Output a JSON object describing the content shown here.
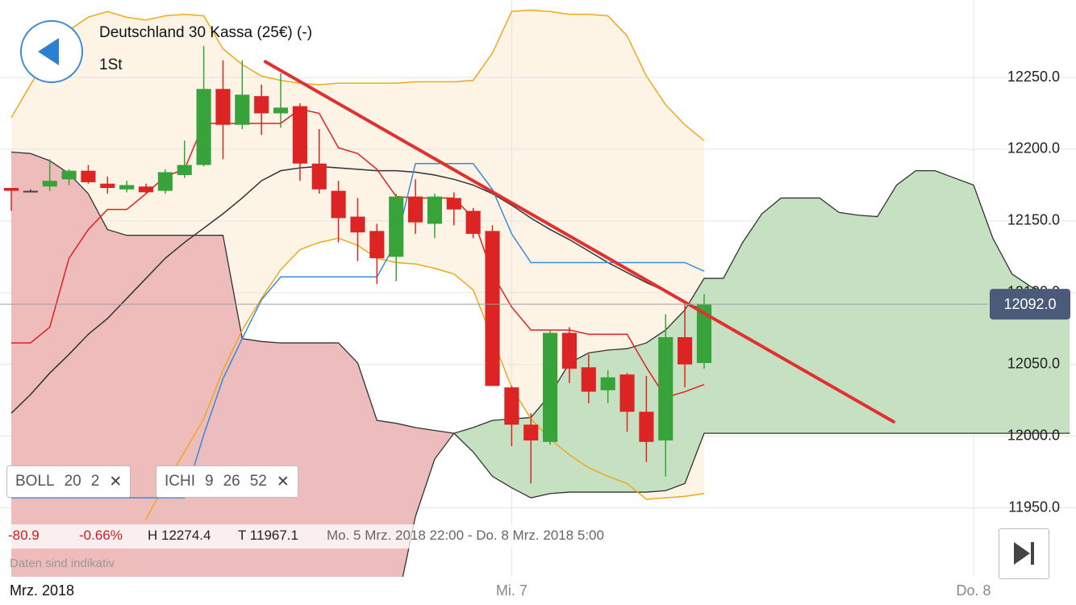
{
  "header": {
    "title": "Deutschland 30 Kassa (25€) (-)",
    "interval": "1St"
  },
  "chart_data": {
    "type": "candlestick",
    "period_label": "Mrz. 2018",
    "categories": [
      null,
      null,
      null,
      null,
      null,
      null,
      null,
      null,
      null,
      null,
      null,
      null,
      null,
      null,
      null,
      null,
      null,
      null,
      null,
      null,
      null,
      null,
      null,
      null,
      null,
      null,
      "Mi. 7",
      null,
      null,
      null,
      null,
      null,
      null,
      null,
      null,
      null,
      null,
      null,
      null,
      null,
      null,
      null,
      null,
      null,
      null,
      null,
      null,
      null,
      null,
      null,
      "Do. 8",
      null,
      null,
      null,
      null,
      null
    ],
    "open": [
      12173,
      12171,
      12174,
      12179,
      12185,
      12176,
      12172,
      12174,
      12171,
      12182,
      12189,
      12242,
      12217,
      12237,
      12225,
      12230,
      12190,
      12171,
      12153,
      12143,
      12125,
      12167,
      12148,
      12166,
      12157,
      12143,
      12034,
      12008,
      11996,
      12072,
      12048,
      12032,
      12043,
      12017,
      11997,
      12069,
      12051,
      null,
      null,
      null,
      null,
      null,
      null,
      null,
      null,
      null,
      null,
      null,
      null,
      null,
      null,
      null,
      null,
      null,
      null,
      null
    ],
    "high": [
      12173,
      12172,
      12193,
      12186,
      12189,
      12181,
      12178,
      12176,
      12186,
      12206,
      12272,
      12262,
      12262,
      12245,
      12253,
      12232,
      12214,
      12178,
      12166,
      12148,
      12169,
      12179,
      12169,
      12170,
      12159,
      12147,
      12035,
      12016,
      12074,
      12076,
      12057,
      12046,
      12044,
      12042,
      12085,
      12092,
      12099,
      null,
      null,
      null,
      null,
      null,
      null,
      null,
      null,
      null,
      null,
      null,
      null,
      null,
      null,
      null,
      null,
      null,
      null,
      null
    ],
    "low": [
      12157,
      12170,
      12171,
      12175,
      12176,
      12169,
      12170,
      12169,
      12169,
      12180,
      12188,
      12193,
      12214,
      12210,
      12215,
      12178,
      12169,
      12135,
      12122,
      12106,
      12108,
      12141,
      12138,
      12147,
      12138,
      12035,
      11993,
      11967,
      11994,
      12037,
      12023,
      12023,
      12003,
      11982,
      11972,
      12034,
      12047,
      null,
      null,
      null,
      null,
      null,
      null,
      null,
      null,
      null,
      null,
      null,
      null,
      null,
      null,
      null,
      null,
      null,
      null,
      null
    ],
    "close": [
      12171,
      12171,
      12178,
      12185,
      12177,
      12173,
      12175,
      12170,
      12184,
      12189,
      12242,
      12217,
      12238,
      12225,
      12229,
      12190,
      12172,
      12152,
      12142,
      12124,
      12167,
      12149,
      12167,
      12158,
      12141,
      12035,
      12008,
      11997,
      12072,
      12047,
      12031,
      12041,
      12017,
      11996,
      12069,
      12050,
      12092,
      null,
      null,
      null,
      null,
      null,
      null,
      null,
      null,
      null,
      null,
      null,
      null,
      null,
      null,
      null,
      null,
      null,
      null,
      null
    ],
    "up_color": "#38a33a",
    "down_color": "#dd2424",
    "flat_color": "#444444",
    "ylim": [
      11902,
      12304
    ],
    "yticks": [
      {
        "value": 11950,
        "label": "11950.0"
      },
      {
        "value": 12000,
        "label": "12000.0"
      },
      {
        "value": 12050,
        "label": "12050.0"
      },
      {
        "value": 12100,
        "label": "12100.0"
      },
      {
        "value": 12150,
        "label": "12150.0"
      },
      {
        "value": 12200,
        "label": "12200.0"
      },
      {
        "value": 12250,
        "label": "12250.0"
      }
    ],
    "grid": true,
    "band_fill": "#fdf4e6",
    "overlays": [
      {
        "color": "#efa81c",
        "values": [
          12222,
          12245,
          12267,
          12283,
          12292,
          12296,
          12292,
          12290,
          12293,
          12294,
          12293,
          12270,
          12259,
          12251,
          12248,
          12246,
          12245,
          12246,
          12246,
          12246,
          12246,
          12247,
          12247,
          12247,
          12248,
          12267,
          12296,
          12297,
          12296,
          12294,
          12294,
          12293,
          12279,
          12251,
          12231,
          12217,
          12206,
          null,
          null,
          null,
          null,
          null,
          null,
          null,
          null,
          null,
          null,
          null,
          null,
          null,
          null,
          null,
          null,
          null,
          null,
          null
        ]
      },
      {
        "color": "#efa81c",
        "values": [
          null,
          null,
          null,
          null,
          null,
          null,
          null,
          11942,
          11967,
          11989,
          12012,
          12046,
          12074,
          12096,
          12116,
          12130,
          12135,
          12138,
          12133,
          12124,
          12121,
          12120,
          12117,
          12113,
          12102,
          12068,
          12034,
          12012,
          11998,
          11987,
          11978,
          11972,
          11967,
          11956,
          11957,
          11958,
          11960,
          null,
          null,
          null,
          null,
          null,
          null,
          null,
          null,
          null,
          null,
          null,
          null,
          null,
          null,
          null,
          null,
          null,
          null,
          null
        ]
      },
      {
        "color": "#333333",
        "values": [
          12016,
          12029,
          12044,
          12057,
          12071,
          12082,
          12096,
          12110,
          12124,
          12135,
          12145,
          12155,
          12166,
          12178,
          12185,
          12187,
          12188,
          12187,
          12186,
          12185,
          12185,
          12184,
          12182,
          12179,
          12175,
          12169,
          12161,
          12152,
          12144,
          12137,
          12129,
          12121,
          12114,
          12107,
          12101,
          12093,
          12088,
          null,
          null,
          null,
          null,
          null,
          null,
          null,
          null,
          null,
          null,
          null,
          null,
          null,
          null,
          null,
          null,
          null,
          null,
          null
        ]
      },
      {
        "color": "#e02020",
        "values": [
          12065,
          12065,
          12076,
          12124,
          12144,
          12158,
          12158,
          12169,
          12181,
          12186,
          12218,
          12218,
          12218,
          12218,
          12218,
          12228,
          12225,
          12201,
          12197,
          12186,
          12167,
          12166,
          12166,
          12166,
          12152,
          12113,
          12090,
          12074,
          12074,
          12074,
          12071,
          12071,
          12071,
          12048,
          12027,
          12031,
          12036,
          null,
          null,
          null,
          null,
          null,
          null,
          null,
          null,
          null,
          null,
          null,
          null,
          null,
          null,
          null,
          null,
          null,
          null,
          null
        ]
      },
      {
        "color": "#3b8bd8",
        "values": [
          11957,
          11957,
          11957,
          11957,
          11957,
          11957,
          11957,
          11957,
          11957,
          11957,
          12001,
          12040,
          12068,
          12095,
          12111,
          12111,
          12111,
          12111,
          12111,
          12111,
          12135,
          12190,
          12190,
          12190,
          12190,
          12172,
          12141,
          12121,
          12121,
          12121,
          12121,
          12121,
          12121,
          12121,
          12121,
          12121,
          12115,
          null,
          null,
          null,
          null,
          null,
          null,
          null,
          null,
          null,
          null,
          null,
          null,
          null,
          null,
          null,
          null,
          null,
          null,
          null
        ]
      }
    ],
    "cloud": {
      "span_a": [
        11880,
        11880,
        11880,
        11880,
        11880,
        11880,
        11880,
        11880,
        11880,
        11880,
        11880,
        11880,
        11880,
        11880,
        11880,
        11880,
        11880,
        11880,
        11880,
        11880,
        11880,
        11944,
        11984,
        12002,
        12006,
        12011,
        12012,
        12013,
        12029,
        12051,
        12058,
        12060,
        12061,
        12065,
        12074,
        12088,
        12110,
        12110,
        12135,
        12155,
        12166,
        12166,
        12166,
        12156,
        12154,
        12153,
        12175,
        12185,
        12185,
        12180,
        12175,
        12138,
        12113,
        12104,
        12099,
        12096
      ],
      "span_b": [
        12198,
        12197,
        12192,
        12183,
        12169,
        12144,
        12140,
        12140,
        12140,
        12140,
        12140,
        12140,
        12068,
        12066,
        12065,
        12065,
        12065,
        12065,
        12051,
        12011,
        12009,
        12006,
        12004,
        12002,
        11989,
        11972,
        11964,
        11957,
        11960,
        11961,
        11961,
        11961,
        11961,
        11961,
        11962,
        11967,
        12002,
        12002,
        12002,
        12002,
        12002,
        12002,
        12002,
        12002,
        12002,
        12002,
        12002,
        12002,
        12002,
        12002,
        12002,
        12002,
        12002,
        12002,
        12002,
        12002
      ],
      "bull_color": "#c2dfbf",
      "bear_color": "#ecb8b8",
      "edge_color": "#333333"
    },
    "trendline": {
      "x": [
        13.2,
        45.85
      ],
      "values": [
        12261,
        12010
      ],
      "color": "#e03030"
    },
    "last_price": {
      "value": 12092,
      "label": "12092.0",
      "color": "#4b5a78"
    }
  },
  "indicators": [
    {
      "name": "BOLL",
      "params": [
        20,
        2
      ]
    },
    {
      "name": "ICHI",
      "params": [
        9,
        26,
        52
      ]
    }
  ],
  "stats": {
    "change": "-80.9",
    "change_pct": "-0.66%",
    "high": "H 12274.4",
    "low": "T 11967.1",
    "range": "Mo. 5 Mrz. 2018 22:00 - Do. 8 Mrz. 2018 5:00"
  },
  "disclaimer": "Daten sind indikativ"
}
